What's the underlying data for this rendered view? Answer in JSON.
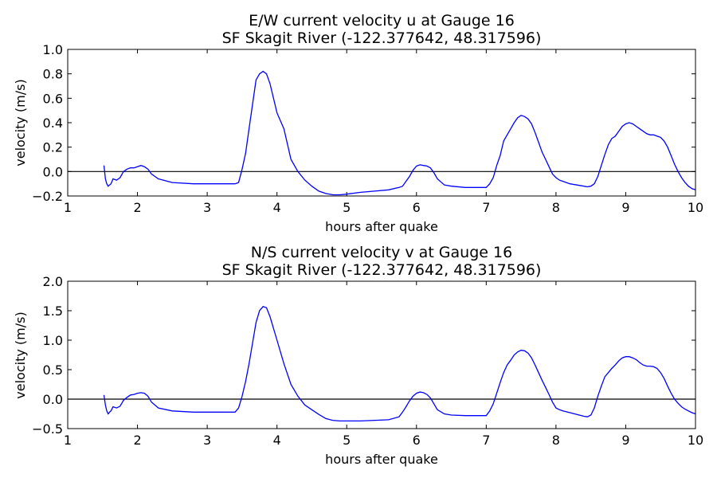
{
  "chart_data": [
    {
      "type": "line",
      "title": "E/W current velocity u at Gauge 16",
      "subtitle": "SF Skagit River  (-122.377642, 48.317596)",
      "xlabel": "hours after quake",
      "ylabel": "velocity (m/s)",
      "xlim": [
        1,
        10
      ],
      "ylim": [
        -0.2,
        1.0
      ],
      "xticks": [
        "1",
        "2",
        "3",
        "4",
        "5",
        "6",
        "7",
        "8",
        "9",
        "10"
      ],
      "yticks": [
        "−0.2",
        "0.0",
        "0.2",
        "0.4",
        "0.6",
        "0.8",
        "1.0"
      ],
      "reference_line_y": 0,
      "grid": false,
      "line_color": "#0000ff",
      "series": [
        {
          "x": [
            1.52,
            1.54,
            1.56,
            1.58,
            1.6,
            1.62,
            1.65,
            1.7,
            1.75,
            1.8,
            1.85,
            1.9,
            1.95,
            2.0,
            2.05,
            2.1,
            2.15,
            2.2,
            2.3,
            2.5,
            2.8,
            3.0,
            3.2,
            3.4,
            3.45,
            3.5,
            3.55,
            3.6,
            3.65,
            3.7,
            3.75,
            3.8,
            3.85,
            3.9,
            3.95,
            4.0,
            4.1,
            4.2,
            4.3,
            4.4,
            4.5,
            4.6,
            4.7,
            4.8,
            4.9,
            5.0,
            5.2,
            5.4,
            5.6,
            5.75,
            5.8,
            5.85,
            5.9,
            5.95,
            6.0,
            6.05,
            6.1,
            6.15,
            6.2,
            6.25,
            6.3,
            6.4,
            6.5,
            6.7,
            6.9,
            7.0,
            7.05,
            7.1,
            7.15,
            7.2,
            7.25,
            7.3,
            7.35,
            7.4,
            7.45,
            7.5,
            7.55,
            7.6,
            7.65,
            7.7,
            7.75,
            7.8,
            7.85,
            7.9,
            7.95,
            8.0,
            8.05,
            8.1,
            8.2,
            8.3,
            8.4,
            8.45,
            8.5,
            8.55,
            8.6,
            8.65,
            8.7,
            8.75,
            8.8,
            8.85,
            8.9,
            8.95,
            9.0,
            9.05,
            9.1,
            9.15,
            9.2,
            9.25,
            9.3,
            9.35,
            9.4,
            9.45,
            9.5,
            9.55,
            9.6,
            9.65,
            9.7,
            9.75,
            9.8,
            9.85,
            9.9,
            9.95,
            10.0
          ],
          "y": [
            0.05,
            -0.06,
            -0.1,
            -0.12,
            -0.11,
            -0.1,
            -0.06,
            -0.07,
            -0.05,
            0.0,
            0.02,
            0.03,
            0.03,
            0.04,
            0.05,
            0.04,
            0.02,
            -0.02,
            -0.06,
            -0.09,
            -0.1,
            -0.1,
            -0.1,
            -0.1,
            -0.09,
            0.02,
            0.15,
            0.35,
            0.55,
            0.75,
            0.8,
            0.82,
            0.8,
            0.72,
            0.6,
            0.48,
            0.35,
            0.1,
            0.0,
            -0.07,
            -0.12,
            -0.16,
            -0.18,
            -0.19,
            -0.19,
            -0.185,
            -0.17,
            -0.16,
            -0.15,
            -0.13,
            -0.12,
            -0.08,
            -0.04,
            0.01,
            0.045,
            0.055,
            0.05,
            0.045,
            0.03,
            -0.01,
            -0.06,
            -0.11,
            -0.12,
            -0.13,
            -0.13,
            -0.13,
            -0.1,
            -0.05,
            0.05,
            0.13,
            0.25,
            0.3,
            0.35,
            0.4,
            0.44,
            0.46,
            0.45,
            0.43,
            0.39,
            0.32,
            0.24,
            0.16,
            0.1,
            0.04,
            -0.02,
            -0.05,
            -0.07,
            -0.08,
            -0.1,
            -0.11,
            -0.12,
            -0.125,
            -0.12,
            -0.1,
            -0.04,
            0.05,
            0.14,
            0.22,
            0.27,
            0.29,
            0.33,
            0.37,
            0.39,
            0.4,
            0.39,
            0.37,
            0.35,
            0.33,
            0.31,
            0.3,
            0.3,
            0.29,
            0.28,
            0.25,
            0.2,
            0.13,
            0.06,
            0.0,
            -0.05,
            -0.09,
            -0.12,
            -0.14,
            -0.15
          ]
        }
      ]
    },
    {
      "type": "line",
      "title": "N/S current velocity v at Gauge 16",
      "subtitle": "SF Skagit River  (-122.377642, 48.317596)",
      "xlabel": "hours after quake",
      "ylabel": "velocity (m/s)",
      "xlim": [
        1,
        10
      ],
      "ylim": [
        -0.5,
        2.0
      ],
      "xticks": [
        "1",
        "2",
        "3",
        "4",
        "5",
        "6",
        "7",
        "8",
        "9",
        "10"
      ],
      "yticks": [
        "−0.5",
        "0.0",
        "0.5",
        "1.0",
        "1.5",
        "2.0"
      ],
      "reference_line_y": 0,
      "grid": false,
      "line_color": "#0000ff",
      "series": [
        {
          "x": [
            1.52,
            1.54,
            1.56,
            1.58,
            1.6,
            1.62,
            1.65,
            1.7,
            1.75,
            1.8,
            1.85,
            1.9,
            1.95,
            2.0,
            2.05,
            2.1,
            2.15,
            2.2,
            2.3,
            2.5,
            2.8,
            3.0,
            3.2,
            3.4,
            3.45,
            3.5,
            3.55,
            3.6,
            3.65,
            3.7,
            3.75,
            3.8,
            3.85,
            3.9,
            3.95,
            4.0,
            4.1,
            4.2,
            4.3,
            4.4,
            4.5,
            4.6,
            4.7,
            4.8,
            4.9,
            5.0,
            5.2,
            5.4,
            5.6,
            5.75,
            5.8,
            5.85,
            5.9,
            5.95,
            6.0,
            6.05,
            6.1,
            6.15,
            6.2,
            6.25,
            6.3,
            6.4,
            6.5,
            6.7,
            6.9,
            7.0,
            7.05,
            7.1,
            7.15,
            7.2,
            7.25,
            7.3,
            7.35,
            7.4,
            7.45,
            7.5,
            7.55,
            7.6,
            7.65,
            7.7,
            7.75,
            7.8,
            7.85,
            7.9,
            7.95,
            8.0,
            8.05,
            8.1,
            8.2,
            8.3,
            8.4,
            8.45,
            8.5,
            8.55,
            8.6,
            8.65,
            8.7,
            8.75,
            8.8,
            8.85,
            8.9,
            8.95,
            9.0,
            9.05,
            9.1,
            9.15,
            9.2,
            9.25,
            9.3,
            9.35,
            9.4,
            9.45,
            9.5,
            9.55,
            9.6,
            9.65,
            9.7,
            9.75,
            9.8,
            9.85,
            9.9,
            9.95,
            10.0
          ],
          "y": [
            0.07,
            -0.1,
            -0.2,
            -0.25,
            -0.22,
            -0.2,
            -0.13,
            -0.15,
            -0.12,
            -0.02,
            0.03,
            0.07,
            0.08,
            0.1,
            0.11,
            0.1,
            0.05,
            -0.05,
            -0.15,
            -0.2,
            -0.22,
            -0.22,
            -0.22,
            -0.22,
            -0.15,
            0.05,
            0.3,
            0.6,
            0.95,
            1.3,
            1.5,
            1.57,
            1.55,
            1.4,
            1.2,
            1.0,
            0.6,
            0.25,
            0.05,
            -0.1,
            -0.18,
            -0.26,
            -0.33,
            -0.36,
            -0.37,
            -0.37,
            -0.37,
            -0.36,
            -0.35,
            -0.3,
            -0.22,
            -0.13,
            -0.03,
            0.05,
            0.1,
            0.12,
            0.11,
            0.08,
            0.02,
            -0.08,
            -0.18,
            -0.25,
            -0.27,
            -0.28,
            -0.28,
            -0.28,
            -0.2,
            -0.08,
            0.1,
            0.28,
            0.45,
            0.58,
            0.66,
            0.75,
            0.8,
            0.83,
            0.82,
            0.78,
            0.7,
            0.58,
            0.45,
            0.32,
            0.2,
            0.08,
            -0.05,
            -0.15,
            -0.18,
            -0.2,
            -0.23,
            -0.26,
            -0.29,
            -0.3,
            -0.27,
            -0.15,
            0.05,
            0.22,
            0.38,
            0.45,
            0.52,
            0.58,
            0.65,
            0.7,
            0.72,
            0.72,
            0.7,
            0.67,
            0.62,
            0.58,
            0.56,
            0.56,
            0.55,
            0.52,
            0.45,
            0.35,
            0.22,
            0.1,
            0.0,
            -0.07,
            -0.13,
            -0.17,
            -0.2,
            -0.23,
            -0.25
          ]
        }
      ]
    }
  ]
}
